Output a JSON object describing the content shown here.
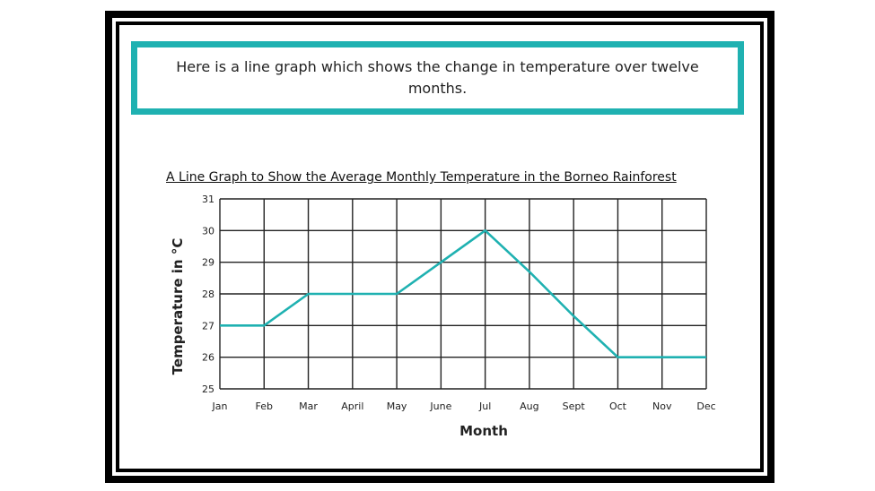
{
  "banner": {
    "text": "Here is a line graph which shows the change in temperature over twelve months."
  },
  "chart_data": {
    "type": "line",
    "title": "A Line Graph to Show the Average Monthly Temperature in the Borneo Rainforest",
    "xlabel": "Month",
    "ylabel": "Temperature in °C",
    "categories": [
      "Jan",
      "Feb",
      "Mar",
      "April",
      "May",
      "June",
      "Jul",
      "Aug",
      "Sept",
      "Oct",
      "Nov",
      "Dec"
    ],
    "values": [
      27,
      27,
      28,
      28,
      28,
      29,
      30,
      28.7,
      27.3,
      26,
      26,
      26
    ],
    "yticks": [
      25,
      26,
      27,
      28,
      29,
      30,
      31
    ],
    "ylim": [
      25,
      31
    ],
    "grid": true,
    "line_color": "#1fb1b1"
  }
}
